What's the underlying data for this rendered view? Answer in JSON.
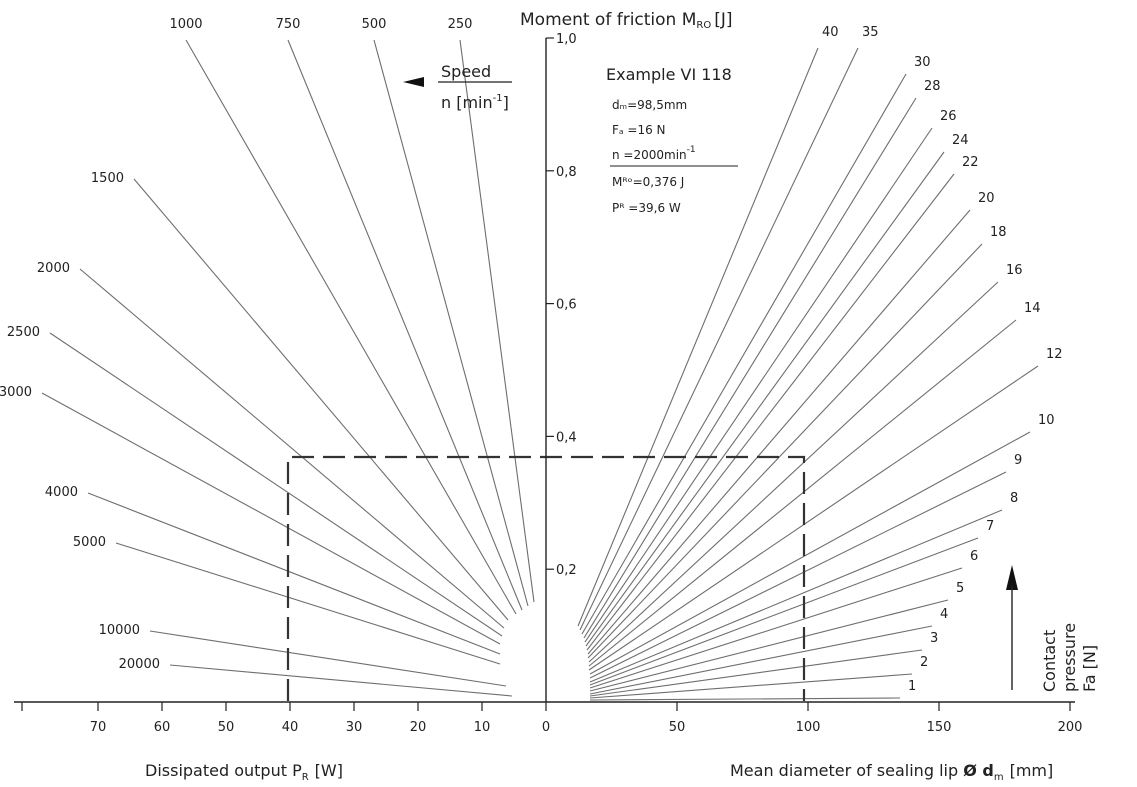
{
  "chart_data": {
    "type": "nomogram",
    "title": "Moment of friction M_RO [J]",
    "y_axis": {
      "label": "Moment of friction",
      "symbol": "M",
      "subscript": "RO",
      "unit": "[J]",
      "range": [
        0,
        1.0
      ],
      "ticks": [
        "0,2",
        "0,4",
        "0,6",
        "0,8",
        "1,0"
      ],
      "tick_values": [
        0.2,
        0.4,
        0.6,
        0.8,
        1.0
      ]
    },
    "x_left": {
      "label": "Dissipated output P",
      "subscript": "R",
      "unit": "[W]",
      "range": [
        0,
        80
      ],
      "ticks": [
        "70",
        "60",
        "50",
        "40",
        "30",
        "20",
        "10",
        "0"
      ],
      "tick_values": [
        70,
        60,
        50,
        40,
        30,
        20,
        10,
        0
      ]
    },
    "x_right": {
      "label": "Mean diameter of sealing lip",
      "symbol": "Ø d",
      "subscript": "m",
      "unit": "[mm]",
      "range": [
        0,
        200
      ],
      "ticks": [
        "50",
        "100",
        "150",
        "200"
      ],
      "tick_values": [
        50,
        100,
        150,
        200
      ]
    },
    "speed_lines": {
      "label_line1": "Speed",
      "label_line2": "n [min",
      "label_sup": "-1",
      "label_end": "]",
      "values": [
        "250",
        "500",
        "750",
        "1000",
        "1500",
        "2000",
        "2500",
        "3000",
        "4000",
        "5000",
        "10000",
        "20000"
      ]
    },
    "pressure_lines": {
      "label_line1": "Contact",
      "label_line2": "pressure",
      "label_line3": "Fa [N]",
      "values": [
        "1",
        "2",
        "3",
        "4",
        "5",
        "6",
        "7",
        "8",
        "9",
        "10",
        "12",
        "14",
        "16",
        "18",
        "20",
        "22",
        "24",
        "26",
        "28",
        "30",
        "35",
        "40"
      ]
    },
    "example": {
      "title": "Example VI 118",
      "dm": "dₘ=98,5mm",
      "fa": "Fₐ =16   N",
      "n_text": "n   =2000min",
      "n_sup": "-1",
      "mro": "Mᴿᵒ=0,376 J",
      "pr": "Pᴿ  =39,6 W",
      "dm_value": 98.5,
      "fa_value": 16,
      "n_value": 2000,
      "mro_value": 0.376,
      "pr_value": 39.6
    }
  }
}
